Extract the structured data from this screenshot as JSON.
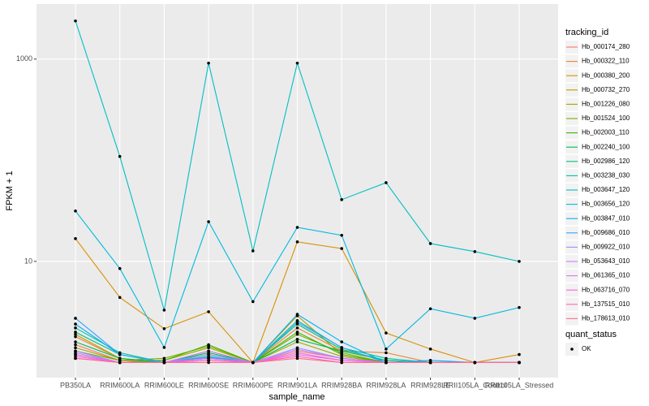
{
  "chart_data": {
    "type": "line",
    "x_label": "sample_name",
    "y_label": "FPKM + 1",
    "log_scale": true,
    "grid": true,
    "legend_title": "tracking_id",
    "legend_position": "right",
    "point_legend": {
      "title": "quant_status",
      "label": "OK",
      "color": "#000000"
    },
    "categories": [
      "PB350LA",
      "RRIM600LA",
      "RRIM600LE",
      "RRIM600SE",
      "RRIM600PE",
      "RRIM901LA",
      "RRIM928BA",
      "RRIM928LA",
      "RRIM928LE",
      "RRII105LA_Control",
      "RRII105LA_Stressed"
    ],
    "ylim": [
      0.71,
      3500
    ],
    "yticks": [
      10,
      1000
    ],
    "series": [
      {
        "name": "Hb_000174_280",
        "color": "#F8766D",
        "values": [
          1.5,
          1.05,
          1,
          1.1,
          1,
          1.3,
          1.1,
          1,
          1,
          1,
          1
        ]
      },
      {
        "name": "Hb_000322_110",
        "color": "#EA8331",
        "values": [
          1.8,
          1.1,
          1,
          1.2,
          1,
          2.2,
          1.3,
          1.25,
          1,
          1,
          1
        ]
      },
      {
        "name": "Hb_000380_200",
        "color": "#D89000",
        "values": [
          16.8,
          4.4,
          2.16,
          3.18,
          1,
          15.6,
          13.4,
          1.96,
          1.36,
          1,
          1.2
        ]
      },
      {
        "name": "Hb_000732_270",
        "color": "#C09B00",
        "values": [
          1.9,
          1.1,
          1,
          1.3,
          1,
          2.9,
          1.2,
          1,
          1,
          1,
          1
        ]
      },
      {
        "name": "Hb_001226_080",
        "color": "#A3A500",
        "values": [
          1.4,
          1.05,
          1.05,
          1.4,
          1,
          1.6,
          1.15,
          1,
          1,
          1,
          1
        ]
      },
      {
        "name": "Hb_001524_100",
        "color": "#7CAE00",
        "values": [
          1.3,
          1.05,
          1.1,
          1.45,
          1,
          1.9,
          1.25,
          1,
          1,
          1,
          1
        ]
      },
      {
        "name": "Hb_002003_110",
        "color": "#39B600",
        "values": [
          1.2,
          1,
          1.05,
          1.5,
          1,
          2.0,
          1.2,
          1,
          1,
          1,
          1
        ]
      },
      {
        "name": "Hb_002240_100",
        "color": "#00BB4E",
        "values": [
          1.6,
          1.1,
          1,
          1.25,
          1,
          1.7,
          1.3,
          1.05,
          1,
          1,
          1
        ]
      },
      {
        "name": "Hb_002986_120",
        "color": "#00BF7D",
        "values": [
          2.0,
          1.2,
          1,
          1.2,
          1,
          2.4,
          1.35,
          1.05,
          1,
          1,
          1
        ]
      },
      {
        "name": "Hb_003238_030",
        "color": "#00C1A3",
        "values": [
          2.2,
          1.25,
          1,
          1.15,
          1,
          2.6,
          1.4,
          1.1,
          1,
          1,
          1
        ]
      },
      {
        "name": "Hb_003647_120",
        "color": "#00BFC4",
        "values": [
          2385,
          109,
          3.3,
          912,
          12.7,
          912,
          40.8,
          60,
          15,
          12.5,
          10
        ]
      },
      {
        "name": "Hb_003656_120",
        "color": "#00BAE0",
        "values": [
          31.5,
          8.5,
          1.41,
          24.7,
          4.0,
          21.7,
          18.1,
          1.36,
          3.4,
          2.74,
          3.5
        ]
      },
      {
        "name": "Hb_003847_010",
        "color": "#00B0F6",
        "values": [
          2.4,
          1.2,
          1,
          1.1,
          1,
          3.0,
          1.6,
          1,
          1.05,
          1,
          1
        ]
      },
      {
        "name": "Hb_009686_010",
        "color": "#35A2FF",
        "values": [
          2.74,
          1.2,
          1,
          1.13,
          1,
          2.5,
          1.41,
          1,
          1,
          1,
          1
        ]
      },
      {
        "name": "Hb_009922_010",
        "color": "#9590FF",
        "values": [
          1.3,
          1,
          1,
          1.2,
          1,
          1.4,
          1.1,
          1,
          1,
          1,
          1
        ]
      },
      {
        "name": "Hb_053643_010",
        "color": "#C77CFF",
        "values": [
          1.25,
          1,
          1,
          1.3,
          1,
          1.35,
          1.1,
          1,
          1,
          1,
          1
        ]
      },
      {
        "name": "Hb_061365_010",
        "color": "#E76BF3",
        "values": [
          1.2,
          1,
          1,
          1.1,
          1,
          1.25,
          1.05,
          1,
          1,
          1,
          1
        ]
      },
      {
        "name": "Hb_063716_070",
        "color": "#FA62DB",
        "values": [
          1.15,
          1,
          1,
          1.05,
          1,
          1.2,
          1.05,
          1,
          1,
          1,
          1
        ]
      },
      {
        "name": "Hb_137515_010",
        "color": "#FF62BC",
        "values": [
          1.1,
          1,
          1,
          1.05,
          1,
          1.15,
          1,
          1,
          1,
          1,
          1
        ]
      },
      {
        "name": "Hb_178613_010",
        "color": "#FF6C91",
        "values": [
          1.1,
          1,
          1,
          1,
          1,
          1.1,
          1,
          1,
          1,
          1,
          1
        ]
      }
    ]
  }
}
